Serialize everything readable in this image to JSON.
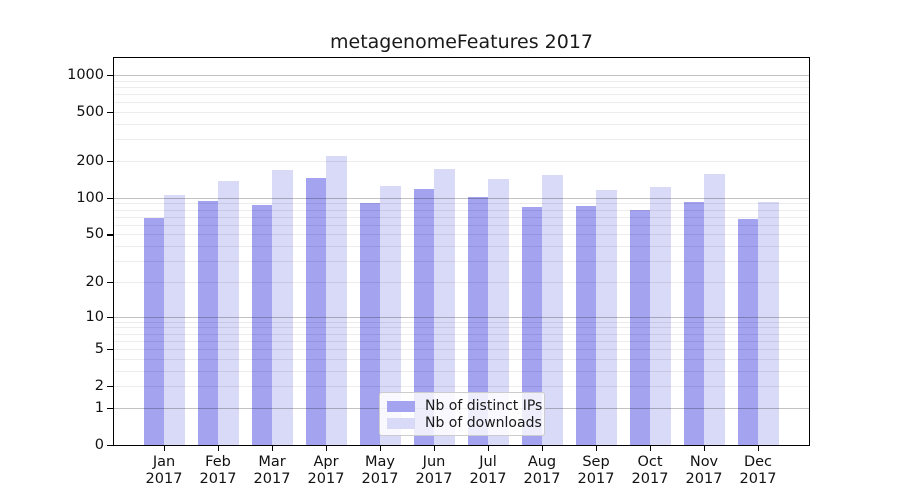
{
  "chart_data": {
    "type": "bar",
    "title": "metagenomeFeatures 2017",
    "categories": [
      "Jan",
      "Feb",
      "Mar",
      "Apr",
      "May",
      "Jun",
      "Jul",
      "Aug",
      "Sep",
      "Oct",
      "Nov",
      "Dec"
    ],
    "x_tick_second_line": "2017",
    "series": [
      {
        "name": "Nb of distinct IPs",
        "color": "#a3a3f0",
        "values": [
          68,
          95,
          87,
          145,
          90,
          118,
          102,
          84,
          85,
          80,
          92,
          67
        ]
      },
      {
        "name": "Nb of downloads",
        "color": "#d9d9f8",
        "values": [
          105,
          138,
          170,
          218,
          126,
          171,
          142,
          155,
          117,
          122,
          156,
          92
        ]
      }
    ],
    "y_axis": {
      "scale": "log10(value+1)",
      "tick_values": [
        1000,
        500,
        200,
        100,
        50,
        20,
        10,
        5,
        2,
        1,
        0
      ],
      "major_gridlines": [
        1,
        10,
        100,
        1000
      ],
      "minor_gridlines_rule": "2-9 per decade",
      "ylim": [
        0,
        1360
      ]
    },
    "legend": {
      "position": "inside-bottom-center"
    },
    "grid": true
  }
}
